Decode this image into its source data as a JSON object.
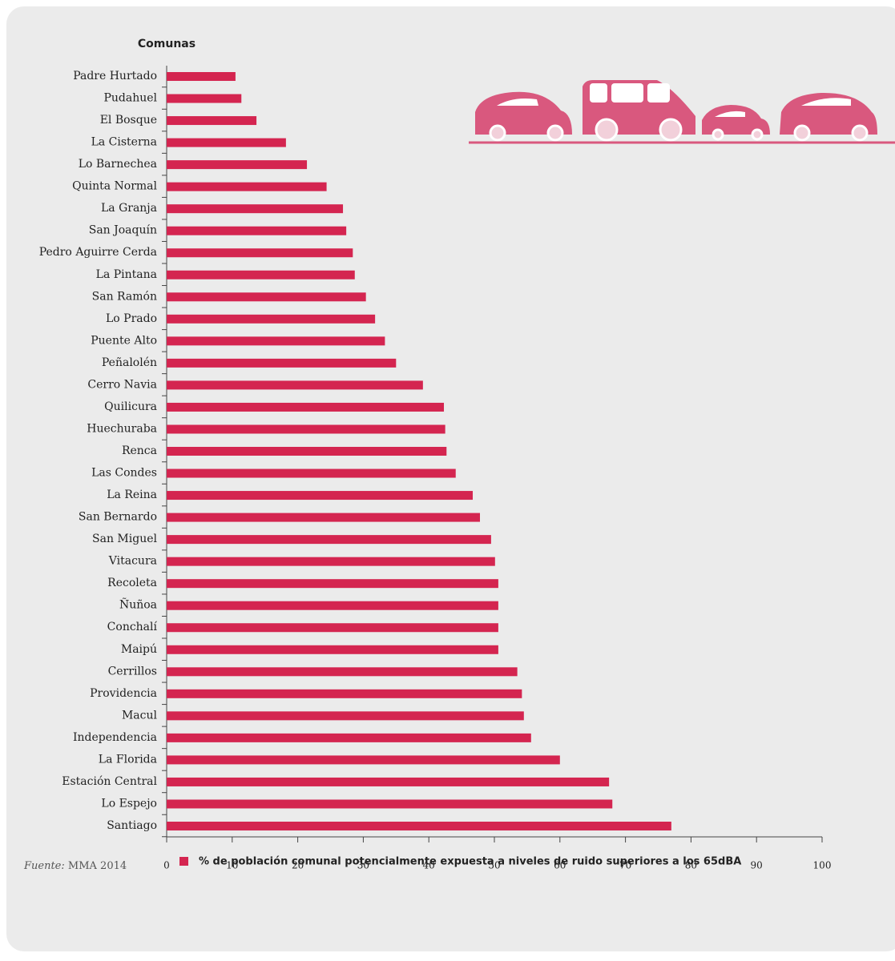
{
  "chart_data": {
    "type": "hbar",
    "y_label": "Comunas",
    "categories": [
      "Padre Hurtado",
      "Pudahuel",
      "El Bosque",
      "La Cisterna",
      "Lo Barnechea",
      "Quinta Normal",
      "La Granja",
      "San Joaquín",
      "Pedro Aguirre Cerda",
      "La Pintana",
      "San Ramón",
      "Lo Prado",
      "Puente Alto",
      "Peñalolén",
      "Cerro Navia",
      "Quilicura",
      "Huechuraba",
      "Renca",
      "Las Condes",
      "La Reina",
      "San Bernardo",
      "San Miguel",
      "Vitacura",
      "Recoleta",
      "Ñuñoa",
      "Conchalí",
      "Maipú",
      "Cerrillos",
      "Providencia",
      "Macul",
      "Independencia",
      "La Florida",
      "Estación Central",
      "Lo Espejo",
      "Santiago"
    ],
    "series": [
      {
        "name": "% de población comunal potencialmente expuesta a niveles de ruido superiores a los 65dBA",
        "color": "#d42550",
        "values": [
          10.5,
          11.4,
          13.7,
          18.2,
          21.4,
          24.4,
          26.9,
          27.4,
          28.4,
          28.7,
          30.4,
          31.8,
          33.3,
          35.0,
          39.1,
          42.3,
          42.5,
          42.7,
          44.1,
          46.7,
          47.8,
          49.5,
          50.1,
          50.6,
          50.6,
          50.6,
          50.6,
          53.5,
          54.2,
          54.5,
          55.6,
          60.0,
          67.5,
          68.0,
          77.0
        ]
      }
    ],
    "xlim": [
      0,
      100
    ],
    "xticks": [
      0,
      10,
      20,
      30,
      40,
      50,
      60,
      70,
      80,
      90,
      100
    ],
    "source_label": "Fuente:",
    "source": "MMA 2014"
  }
}
